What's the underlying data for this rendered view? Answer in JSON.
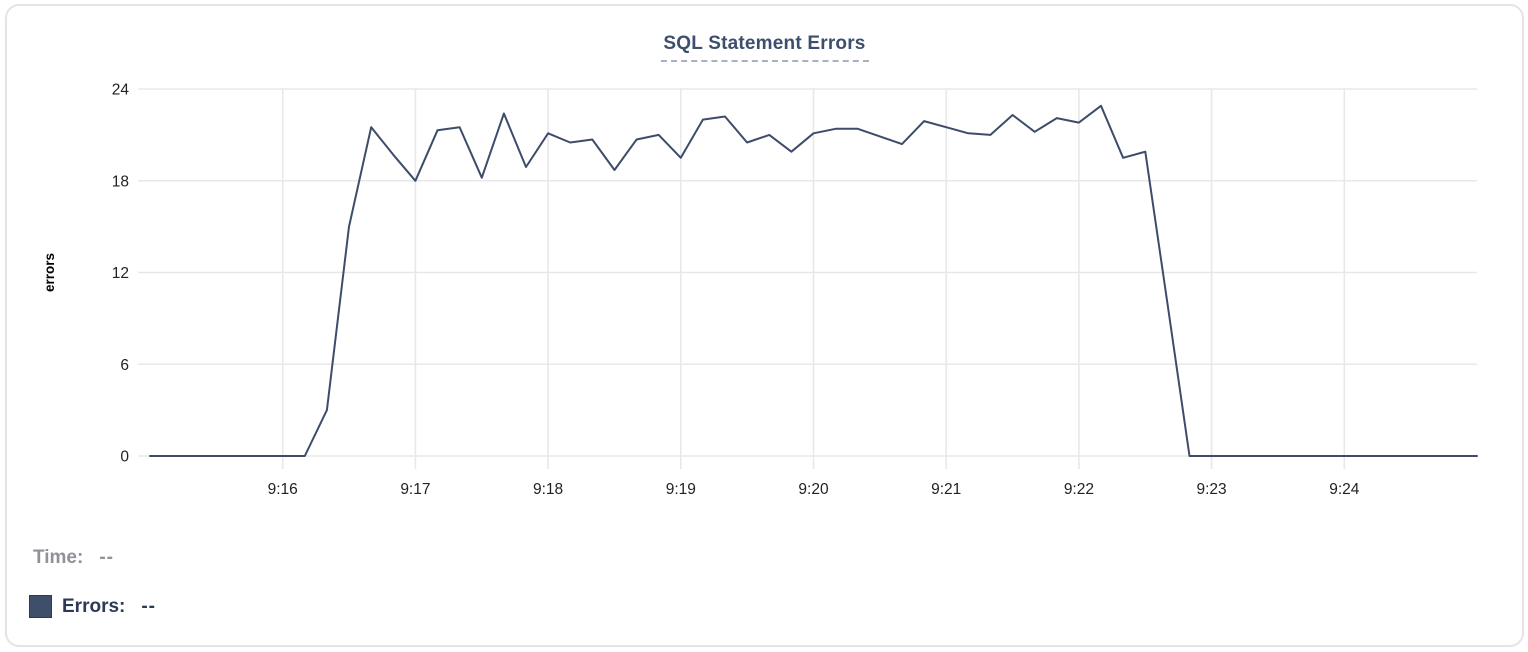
{
  "card": {
    "name": "sql-statement-errors-chart-card"
  },
  "chart_data": {
    "type": "line",
    "title": "SQL Statement Errors",
    "xlabel": "",
    "ylabel": "errors",
    "ylim": [
      0,
      24
    ],
    "y_ticks": [
      0,
      6,
      12,
      18,
      24
    ],
    "x_start_time": "9:15:00",
    "x_end_time": "9:25:00",
    "x_ticks": [
      {
        "label": "9:16",
        "t": 60
      },
      {
        "label": "9:17",
        "t": 120
      },
      {
        "label": "9:18",
        "t": 180
      },
      {
        "label": "9:19",
        "t": 240
      },
      {
        "label": "9:20",
        "t": 300
      },
      {
        "label": "9:21",
        "t": 360
      },
      {
        "label": "9:22",
        "t": 420
      },
      {
        "label": "9:23",
        "t": 480
      },
      {
        "label": "9:24",
        "t": 540
      }
    ],
    "grid": true,
    "legend_position": "none",
    "series": [
      {
        "name": "Errors",
        "color": "#3d4c6a",
        "points": [
          [
            "9:15:00",
            0
          ],
          [
            "9:15:10",
            0
          ],
          [
            "9:15:20",
            0
          ],
          [
            "9:15:30",
            0
          ],
          [
            "9:15:40",
            0
          ],
          [
            "9:15:50",
            0
          ],
          [
            "9:16:00",
            0
          ],
          [
            "9:16:10",
            0
          ],
          [
            "9:16:20",
            3
          ],
          [
            "9:16:30",
            15
          ],
          [
            "9:16:40",
            21.5
          ],
          [
            "9:16:50",
            19.7
          ],
          [
            "9:17:00",
            18
          ],
          [
            "9:17:10",
            21.3
          ],
          [
            "9:17:20",
            21.5
          ],
          [
            "9:17:30",
            18.2
          ],
          [
            "9:17:40",
            22.4
          ],
          [
            "9:17:50",
            18.9
          ],
          [
            "9:18:00",
            21.1
          ],
          [
            "9:18:10",
            20.5
          ],
          [
            "9:18:20",
            20.7
          ],
          [
            "9:18:30",
            18.7
          ],
          [
            "9:18:40",
            20.7
          ],
          [
            "9:18:50",
            21
          ],
          [
            "9:19:00",
            19.5
          ],
          [
            "9:19:10",
            22
          ],
          [
            "9:19:20",
            22.2
          ],
          [
            "9:19:30",
            20.5
          ],
          [
            "9:19:40",
            21
          ],
          [
            "9:19:50",
            19.9
          ],
          [
            "9:20:00",
            21.1
          ],
          [
            "9:20:10",
            21.4
          ],
          [
            "9:20:20",
            21.4
          ],
          [
            "9:20:30",
            20.9
          ],
          [
            "9:20:40",
            20.4
          ],
          [
            "9:20:50",
            21.9
          ],
          [
            "9:21:00",
            21.5
          ],
          [
            "9:21:10",
            21.1
          ],
          [
            "9:21:20",
            21
          ],
          [
            "9:21:30",
            22.3
          ],
          [
            "9:21:40",
            21.2
          ],
          [
            "9:21:50",
            22.1
          ],
          [
            "9:22:00",
            21.8
          ],
          [
            "9:22:10",
            22.9
          ],
          [
            "9:22:20",
            19.5
          ],
          [
            "9:22:30",
            19.9
          ],
          [
            "9:22:40",
            10
          ],
          [
            "9:22:50",
            0
          ],
          [
            "9:23:00",
            0
          ],
          [
            "9:23:10",
            0
          ],
          [
            "9:23:20",
            0
          ],
          [
            "9:23:30",
            0
          ],
          [
            "9:23:40",
            0
          ],
          [
            "9:23:50",
            0
          ],
          [
            "9:24:00",
            0
          ],
          [
            "9:24:10",
            0
          ],
          [
            "9:24:20",
            0
          ],
          [
            "9:24:30",
            0
          ],
          [
            "9:24:40",
            0
          ],
          [
            "9:24:50",
            0
          ],
          [
            "9:25:00",
            0
          ]
        ]
      }
    ],
    "colors": {
      "line": "#3d4c6a",
      "grid": "#e8e8e8",
      "tick_label": "#222222",
      "title": "#3e4e6d",
      "title_underline": "#a9b0c2",
      "axis_title": "#000000"
    }
  },
  "readout": {
    "time_label": "Time:",
    "time_value": "--",
    "errors_label": "Errors:",
    "errors_value": "--",
    "swatch_color": "#3f4e69"
  }
}
